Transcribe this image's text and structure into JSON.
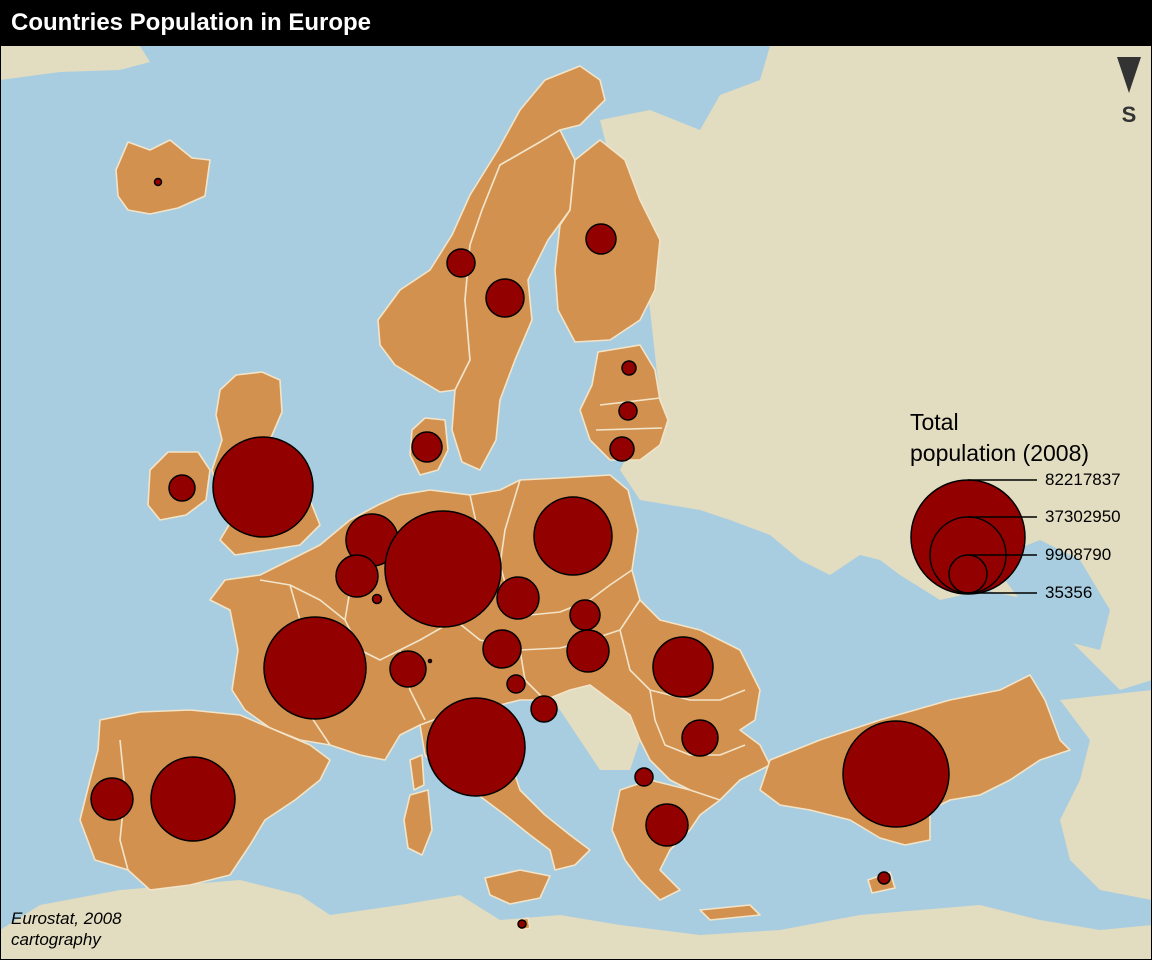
{
  "title": "Countries Population in Europe",
  "north_arrow": {
    "label": "S",
    "icon": "north-arrow-icon"
  },
  "legend": {
    "title_line1": "Total",
    "title_line2": "population (2008)",
    "values": [
      "82217837",
      "37302950",
      "9908790",
      "35356"
    ]
  },
  "source": {
    "line1": "Eurostat, 2008",
    "line2": "cartography"
  },
  "colors": {
    "sea": "#a8cde0",
    "land_eu": "#d3914f",
    "land_other": "#e2dcc0",
    "border": "#f2e4c8",
    "symbol_fill": "#930000",
    "symbol_stroke": "#000000",
    "title_bar": "#000000",
    "title_text": "#ffffff"
  }
}
